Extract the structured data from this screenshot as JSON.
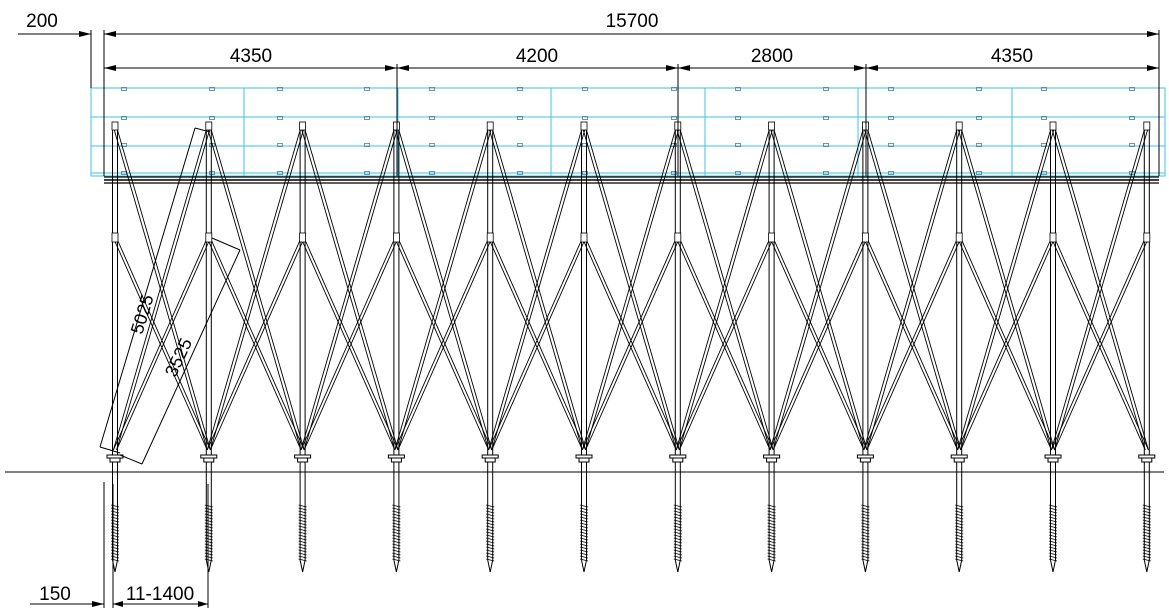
{
  "dimensions": {
    "overall": "15700",
    "offset_top": "200",
    "spans": [
      "4350",
      "4200",
      "2800",
      "4350"
    ],
    "diag_long": "5025",
    "diag_short": "3525",
    "bottom_offset": "150",
    "bottom_spacing": "11-1400"
  },
  "colors": {
    "line": "#000000",
    "panel": "#3ec4e6",
    "background": "#ffffff"
  }
}
